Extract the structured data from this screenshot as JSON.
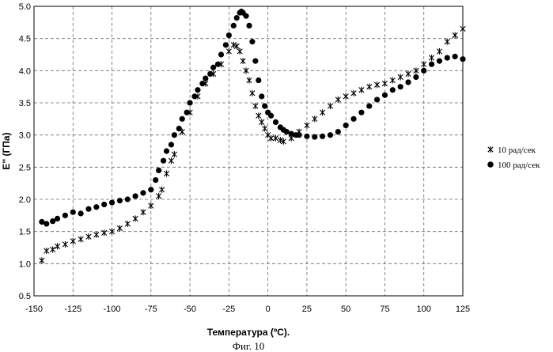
{
  "chart_data": {
    "type": "scatter",
    "title": "",
    "xlabel": "Температура (ºС).",
    "ylabel": "E'' (ГПа)",
    "caption": "Фиг. 10",
    "xlim": [
      -150,
      125
    ],
    "ylim": [
      0.5,
      5.0
    ],
    "x_ticks": [
      -150,
      -125,
      -100,
      -75,
      -50,
      -25,
      0,
      25,
      50,
      75,
      100,
      125
    ],
    "y_ticks": [
      0.5,
      1.0,
      1.5,
      2.0,
      2.5,
      3.0,
      3.5,
      4.0,
      4.5,
      5.0
    ],
    "x_tick_labels": [
      "-150",
      "-125",
      "-100",
      "-75",
      "-50",
      "-25",
      "0",
      "25",
      "50",
      "75",
      "100",
      "125"
    ],
    "y_tick_labels": [
      "0.5",
      "1.0",
      "1.5",
      "2.0",
      "2.5",
      "3.0",
      "3.5",
      "4.0",
      "4.5",
      "5.0"
    ],
    "grid": true,
    "legend_position": "right",
    "series": [
      {
        "name": "10 рад/сек",
        "marker": "star",
        "color": "#000000",
        "x": [
          -145,
          -142,
          -138,
          -135,
          -130,
          -125,
          -120,
          -115,
          -110,
          -105,
          -100,
          -95,
          -90,
          -85,
          -80,
          -75,
          -70,
          -68,
          -65,
          -62,
          -60,
          -55,
          -50,
          -45,
          -40,
          -35,
          -30,
          -25,
          -22,
          -20,
          -18,
          -16,
          -14,
          -12,
          -10,
          -8,
          -6,
          -4,
          -2,
          0,
          2,
          5,
          8,
          10,
          15,
          20,
          25,
          30,
          35,
          40,
          45,
          50,
          55,
          60,
          65,
          70,
          75,
          80,
          85,
          90,
          95,
          100,
          105,
          110,
          115,
          120,
          125
        ],
        "y": [
          1.05,
          1.2,
          1.22,
          1.27,
          1.3,
          1.35,
          1.38,
          1.42,
          1.45,
          1.48,
          1.5,
          1.55,
          1.62,
          1.7,
          1.8,
          1.9,
          2.05,
          2.15,
          2.4,
          2.6,
          2.7,
          3.05,
          3.35,
          3.6,
          3.8,
          3.95,
          4.1,
          4.3,
          4.4,
          4.38,
          4.3,
          4.15,
          4.0,
          3.85,
          3.65,
          3.45,
          3.3,
          3.2,
          3.1,
          3.0,
          2.95,
          2.95,
          2.92,
          2.9,
          2.95,
          3.05,
          3.15,
          3.25,
          3.35,
          3.45,
          3.55,
          3.6,
          3.65,
          3.7,
          3.75,
          3.78,
          3.8,
          3.85,
          3.9,
          3.95,
          4.0,
          4.1,
          4.2,
          4.3,
          4.45,
          4.55,
          4.65
        ]
      },
      {
        "name": "100 рад/сек",
        "marker": "circle",
        "color": "#000000",
        "x": [
          -145,
          -142,
          -138,
          -135,
          -130,
          -125,
          -120,
          -115,
          -110,
          -105,
          -100,
          -95,
          -90,
          -85,
          -80,
          -75,
          -72,
          -70,
          -67,
          -65,
          -62,
          -60,
          -57,
          -55,
          -52,
          -50,
          -47,
          -45,
          -42,
          -40,
          -37,
          -35,
          -32,
          -30,
          -27,
          -25,
          -22,
          -20,
          -18,
          -17,
          -16,
          -14,
          -12,
          -10,
          -8,
          -6,
          -4,
          -2,
          0,
          2,
          5,
          8,
          10,
          12,
          15,
          18,
          20,
          25,
          30,
          35,
          40,
          45,
          50,
          55,
          60,
          65,
          70,
          75,
          80,
          85,
          90,
          95,
          100,
          105,
          110,
          115,
          120,
          125
        ],
        "y": [
          1.65,
          1.62,
          1.66,
          1.7,
          1.75,
          1.8,
          1.78,
          1.85,
          1.88,
          1.92,
          1.95,
          1.98,
          2.0,
          2.05,
          2.1,
          2.15,
          2.3,
          2.45,
          2.6,
          2.75,
          2.85,
          3.0,
          3.1,
          3.25,
          3.35,
          3.5,
          3.6,
          3.7,
          3.8,
          3.88,
          3.95,
          4.05,
          4.1,
          4.25,
          4.4,
          4.55,
          4.7,
          4.82,
          4.9,
          4.92,
          4.9,
          4.85,
          4.7,
          4.45,
          4.15,
          3.85,
          3.6,
          3.45,
          3.35,
          3.3,
          3.2,
          3.12,
          3.08,
          3.05,
          3.02,
          3.0,
          3.0,
          2.98,
          2.97,
          2.98,
          3.0,
          3.05,
          3.15,
          3.25,
          3.35,
          3.45,
          3.55,
          3.62,
          3.7,
          3.75,
          3.82,
          3.9,
          4.0,
          4.1,
          4.15,
          4.2,
          4.22,
          4.18
        ]
      }
    ]
  }
}
